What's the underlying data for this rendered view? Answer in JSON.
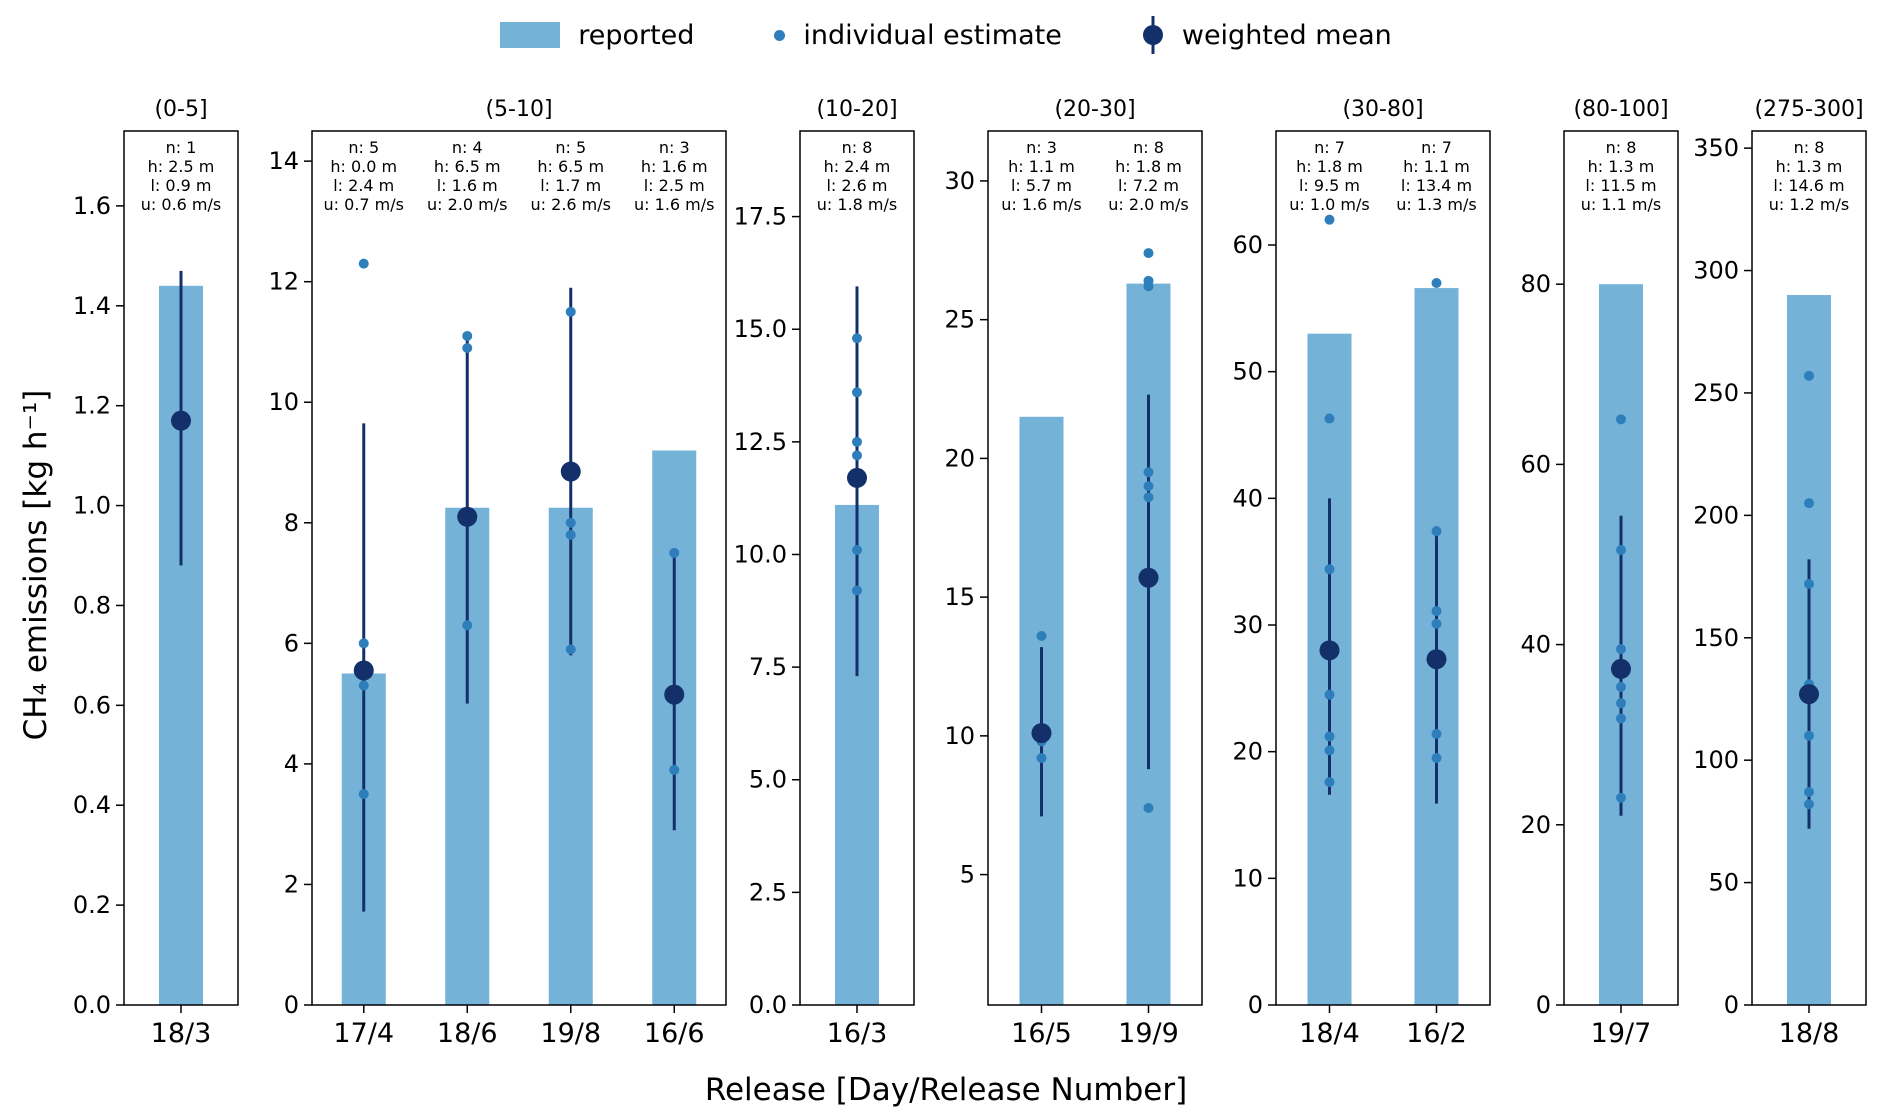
{
  "legend": {
    "items": [
      {
        "label": "reported",
        "marker": "bar-swatch"
      },
      {
        "label": "individual estimate",
        "marker": "small-dot"
      },
      {
        "label": "weighted mean",
        "marker": "mean-dot-with-errorbar"
      }
    ]
  },
  "axes": {
    "xlabel": "Release [Day/Release Number]",
    "ylabel": "CH₄ emissions [kg h⁻¹]"
  },
  "colors": {
    "bar": "#74b2d8",
    "individual": "#2e7ebc",
    "mean": "#13306b",
    "axis": "#000000"
  },
  "chart_data": {
    "type": "bar",
    "title": "",
    "xlabel": "Release [Day/Release Number]",
    "ylabel": "CH4 emissions [kg h-1]",
    "legend_position": "top-center",
    "grid": false,
    "panels": [
      {
        "title": "(0-5]",
        "ylim": [
          0,
          1.75
        ],
        "yticks": [
          "0.0",
          "0.2",
          "0.4",
          "0.6",
          "0.8",
          "1.0",
          "1.2",
          "1.4",
          "1.6"
        ],
        "groups": [
          {
            "release": "18/3",
            "annotation": [
              "n: 1",
              "h: 2.5 m",
              "l: 0.9 m",
              "u: 0.6 m/s"
            ],
            "reported": 1.44,
            "weighted_mean": 1.17,
            "err": [
              0.88,
              1.47
            ],
            "individual": [
              1.17
            ]
          }
        ]
      },
      {
        "title": "(5-10]",
        "ylim": [
          0,
          14.5
        ],
        "yticks": [
          "0",
          "2",
          "4",
          "6",
          "8",
          "10",
          "12",
          "14"
        ],
        "groups": [
          {
            "release": "17/4",
            "annotation": [
              "n: 5",
              "h: 0.0 m",
              "l: 2.4 m",
              "u: 0.7 m/s"
            ],
            "reported": 5.5,
            "weighted_mean": 5.55,
            "err": [
              1.55,
              9.65
            ],
            "individual": [
              12.3,
              6.0,
              5.6,
              5.3,
              3.5
            ]
          },
          {
            "release": "18/6",
            "annotation": [
              "n: 4",
              "h: 6.5 m",
              "l: 1.6 m",
              "u: 2.0 m/s"
            ],
            "reported": 8.25,
            "weighted_mean": 8.1,
            "err": [
              5.0,
              11.15
            ],
            "individual": [
              11.1,
              10.9,
              8.1,
              6.3
            ]
          },
          {
            "release": "19/8",
            "annotation": [
              "n: 5",
              "h: 6.5 m",
              "l: 1.7 m",
              "u: 2.6 m/s"
            ],
            "reported": 8.25,
            "weighted_mean": 8.85,
            "err": [
              5.8,
              11.9
            ],
            "individual": [
              11.5,
              8.9,
              8.0,
              7.8,
              5.9
            ]
          },
          {
            "release": "16/6",
            "annotation": [
              "n: 3",
              "h: 1.6 m",
              "l: 2.5 m",
              "u: 1.6 m/s"
            ],
            "reported": 9.2,
            "weighted_mean": 5.15,
            "err": [
              2.9,
              7.5
            ],
            "individual": [
              7.5,
              5.2,
              3.9
            ]
          }
        ]
      },
      {
        "title": "(10-20]",
        "ylim": [
          0,
          19.4
        ],
        "yticks": [
          "0.0",
          "2.5",
          "5.0",
          "7.5",
          "10.0",
          "12.5",
          "15.0",
          "17.5"
        ],
        "groups": [
          {
            "release": "16/3",
            "annotation": [
              "n: 8",
              "h: 2.4 m",
              "l: 2.6 m",
              "u: 1.8 m/s"
            ],
            "reported": 11.1,
            "weighted_mean": 11.7,
            "err": [
              7.3,
              15.95
            ],
            "individual": [
              14.8,
              13.6,
              12.5,
              12.2,
              11.8,
              11.7,
              10.1,
              9.2
            ]
          }
        ]
      },
      {
        "title": "(20-30]",
        "ylim": [
          0.3,
          31.8
        ],
        "yticks": [
          "5",
          "10",
          "15",
          "20",
          "25",
          "30"
        ],
        "groups": [
          {
            "release": "16/5",
            "annotation": [
              "n: 3",
              "h: 1.1 m",
              "l: 5.7 m",
              "u: 1.6 m/s"
            ],
            "reported": 21.5,
            "weighted_mean": 10.1,
            "err": [
              7.1,
              13.2
            ],
            "individual": [
              13.6,
              9.8,
              9.2
            ]
          },
          {
            "release": "19/9",
            "annotation": [
              "n: 8",
              "h: 1.8 m",
              "l: 7.2 m",
              "u: 2.0 m/s"
            ],
            "reported": 26.3,
            "weighted_mean": 15.7,
            "err": [
              8.8,
              22.3
            ],
            "individual": [
              27.4,
              26.4,
              26.2,
              19.5,
              19.0,
              18.6,
              15.7,
              7.4
            ]
          }
        ]
      },
      {
        "title": "(30-80]",
        "ylim": [
          0,
          69
        ],
        "yticks": [
          "0",
          "10",
          "20",
          "30",
          "40",
          "50",
          "60"
        ],
        "groups": [
          {
            "release": "18/4",
            "annotation": [
              "n: 7",
              "h: 1.8 m",
              "l: 9.5 m",
              "u: 1.0 m/s"
            ],
            "reported": 53,
            "weighted_mean": 28,
            "err": [
              16.6,
              40
            ],
            "individual": [
              62,
              46.3,
              34.4,
              24.5,
              21.2,
              20.1,
              17.6
            ]
          },
          {
            "release": "16/2",
            "annotation": [
              "n: 7",
              "h: 1.1 m",
              "l: 13.4 m",
              "u: 1.3 m/s"
            ],
            "reported": 56.6,
            "weighted_mean": 27.3,
            "err": [
              15.9,
              37.8
            ],
            "individual": [
              57,
              37.4,
              31.1,
              30.1,
              27.3,
              21.4,
              19.5
            ]
          }
        ]
      },
      {
        "title": "(80-100]",
        "ylim": [
          0,
          97
        ],
        "yticks": [
          "0",
          "20",
          "40",
          "60",
          "80"
        ],
        "groups": [
          {
            "release": "19/7",
            "annotation": [
              "n: 8",
              "h: 1.3 m",
              "l: 11.5 m",
              "u: 1.1 m/s"
            ],
            "reported": 80,
            "weighted_mean": 37.3,
            "err": [
              21,
              54.3
            ],
            "individual": [
              65,
              50.5,
              39.5,
              37.3,
              35.3,
              33.5,
              31.8,
              23
            ]
          }
        ]
      },
      {
        "title": "(275-300]",
        "ylim": [
          0,
          357
        ],
        "yticks": [
          "0",
          "50",
          "100",
          "150",
          "200",
          "250",
          "300",
          "350"
        ],
        "groups": [
          {
            "release": "18/8",
            "annotation": [
              "n: 8",
              "h: 1.3 m",
              "l: 14.6 m",
              "u: 1.2 m/s"
            ],
            "reported": 290,
            "weighted_mean": 127,
            "err": [
              72,
              182
            ],
            "individual": [
              257,
              205,
              172,
              131,
              127,
              110,
              87,
              82
            ]
          }
        ]
      }
    ]
  }
}
